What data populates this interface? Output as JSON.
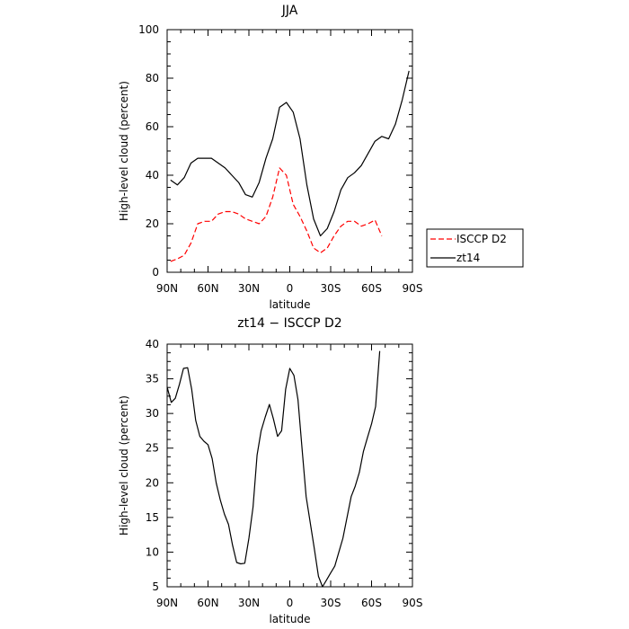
{
  "chart_data": [
    {
      "type": "line",
      "title": "JJA",
      "xlabel": "latitude",
      "ylabel": "High-level cloud (percent)",
      "xlim": [
        90,
        -90
      ],
      "ylim": [
        0,
        100
      ],
      "x_ticks": [
        90,
        60,
        30,
        0,
        -30,
        -60,
        -90
      ],
      "x_tick_labels": [
        "90N",
        "60N",
        "30N",
        "0",
        "30S",
        "60S",
        "90S"
      ],
      "y_ticks": [
        0,
        20,
        40,
        60,
        80,
        100
      ],
      "y_tick_labels": [
        "0",
        "20",
        "40",
        "60",
        "80",
        "100"
      ],
      "grid": false,
      "legend": "outside-right",
      "series": [
        {
          "name": "ISCCP D2",
          "color": "#ff0000",
          "dash": "dashed",
          "x": [
            87.5,
            82.5,
            77.5,
            72.5,
            67.5,
            62.5,
            57.5,
            52.5,
            47.5,
            42.5,
            37.5,
            32.5,
            27.5,
            22.5,
            17.5,
            12.5,
            7.5,
            2.5,
            -2.5,
            -7.5,
            -12.5,
            -17.5,
            -22.5,
            -27.5,
            -32.5,
            -37.5,
            -42.5,
            -47.5,
            -52.5,
            -57.5,
            -62.5,
            -67.5
          ],
          "y": [
            4.5,
            5.5,
            7,
            12,
            20,
            21,
            21,
            24,
            25,
            25,
            24,
            22,
            21,
            20,
            23,
            31,
            43,
            40,
            28,
            23,
            17,
            10,
            8,
            10,
            15,
            19,
            21,
            21,
            19,
            20,
            21.5,
            15
          ]
        },
        {
          "name": "zt14",
          "color": "#000000",
          "dash": "solid",
          "x": [
            87.5,
            82.5,
            77.5,
            72.5,
            67.5,
            62.5,
            57.5,
            52.5,
            47.5,
            42.5,
            37.5,
            32.5,
            27.5,
            22.5,
            17.5,
            12.5,
            7.5,
            2.5,
            -2.5,
            -7.5,
            -12.5,
            -17.5,
            -22.5,
            -27.5,
            -32.5,
            -37.5,
            -42.5,
            -47.5,
            -52.5,
            -57.5,
            -62.5,
            -67.5,
            -72.5,
            -77.5,
            -82.5,
            -87.5
          ],
          "y": [
            38,
            36,
            39,
            45,
            47,
            47,
            47,
            45,
            43,
            40,
            37,
            32,
            31,
            37,
            47,
            55,
            68,
            70,
            66,
            55,
            36,
            22,
            15,
            18,
            25,
            34,
            39,
            41,
            44,
            49,
            54,
            56,
            55,
            61,
            71,
            83
          ]
        }
      ]
    },
    {
      "type": "line",
      "title": "zt14 − ISCCP D2",
      "xlabel": "latitude",
      "ylabel": "High-level cloud (percent)",
      "xlim": [
        90,
        -90
      ],
      "ylim": [
        5,
        40
      ],
      "x_ticks": [
        90,
        60,
        30,
        0,
        -30,
        -60,
        -90
      ],
      "x_tick_labels": [
        "90N",
        "60N",
        "30N",
        "0",
        "30S",
        "60S",
        "90S"
      ],
      "y_ticks": [
        5,
        10,
        15,
        20,
        25,
        30,
        35,
        40
      ],
      "y_tick_labels": [
        "5",
        "10",
        "15",
        "20",
        "25",
        "30",
        "35",
        "40"
      ],
      "grid": false,
      "series": [
        {
          "color": "#000000",
          "dash": "solid",
          "x": [
            90,
            87,
            84,
            81,
            78,
            75,
            72,
            69,
            66,
            63,
            60,
            57,
            54,
            51,
            48,
            45,
            42,
            39,
            36,
            33,
            30,
            27,
            24,
            21,
            18,
            15,
            12,
            9,
            6,
            3,
            0,
            -3,
            -6,
            -9,
            -12,
            -15,
            -18,
            -21,
            -24,
            -27,
            -30,
            -33,
            -36,
            -39,
            -42,
            -45,
            -48,
            -51,
            -54,
            -57,
            -60,
            -63,
            -66
          ],
          "y": [
            33.8,
            31.6,
            32.2,
            34.2,
            36.5,
            36.6,
            33.5,
            29,
            26.7,
            26,
            25.5,
            23.5,
            20,
            17.5,
            15.5,
            14,
            11,
            8.5,
            8.3,
            8.4,
            12,
            16.5,
            24,
            27.5,
            29.5,
            31.3,
            29.2,
            26.7,
            27.5,
            33.5,
            36.5,
            35.5,
            32,
            25,
            18,
            14.2,
            10.5,
            6.5,
            5.0,
            6.0,
            7.0,
            8.0,
            10.0,
            12.0,
            15.0,
            18.0,
            19.5,
            21.5,
            24.5,
            26.5,
            28.5,
            31.0,
            39.0
          ]
        }
      ]
    }
  ]
}
